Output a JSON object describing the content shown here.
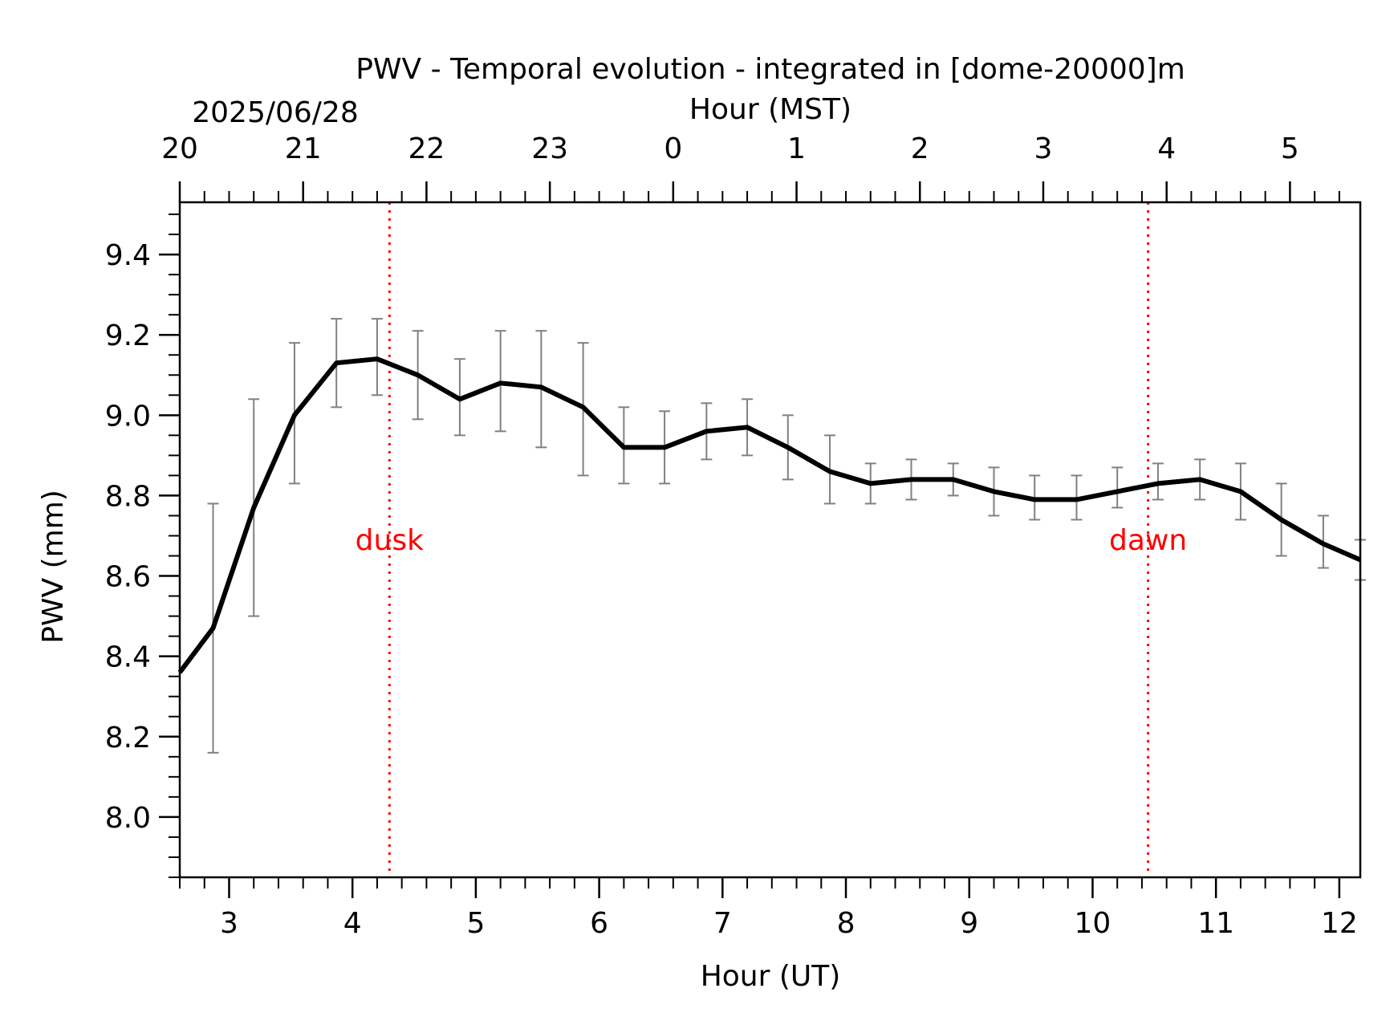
{
  "chart_data": {
    "type": "line",
    "title": "PWV - Temporal evolution - integrated in [dome-20000]m",
    "date_label": "2025/06/28",
    "xlabel": "Hour (UT)",
    "x2label": "Hour (MST)",
    "ylabel": "PWV (mm)",
    "xlim": [
      2.6,
      12.17
    ],
    "ylim": [
      7.85,
      9.53
    ],
    "x_ticks": [
      3,
      4,
      5,
      6,
      7,
      8,
      9,
      10,
      11,
      12
    ],
    "x_tick_labels": [
      "3",
      "4",
      "5",
      "6",
      "7",
      "8",
      "9",
      "10",
      "11",
      "12"
    ],
    "x2_ticks": [
      2.6,
      3.6,
      4.6,
      5.6,
      6.6,
      7.6,
      8.6,
      9.6,
      10.6,
      11.6
    ],
    "x2_tick_labels": [
      "20",
      "21",
      "22",
      "23",
      "0",
      "1",
      "2",
      "3",
      "4",
      "5"
    ],
    "y_ticks": [
      8.0,
      8.2,
      8.4,
      8.6,
      8.8,
      9.0,
      9.2,
      9.4
    ],
    "y_tick_labels": [
      "8.0",
      "8.2",
      "8.4",
      "8.6",
      "8.8",
      "9.0",
      "9.2",
      "9.4"
    ],
    "series": [
      {
        "name": "PWV",
        "color": "#000000",
        "errorbar_color": "#808080",
        "x": [
          2.6,
          2.87,
          3.2,
          3.53,
          3.87,
          4.2,
          4.53,
          4.87,
          5.2,
          5.53,
          5.87,
          6.2,
          6.53,
          6.87,
          7.2,
          7.53,
          7.87,
          8.2,
          8.53,
          8.87,
          9.2,
          9.53,
          9.87,
          10.2,
          10.53,
          10.87,
          11.2,
          11.53,
          11.87,
          12.17
        ],
        "y": [
          8.36,
          8.47,
          8.77,
          9.0,
          9.13,
          9.14,
          9.1,
          9.04,
          9.08,
          9.07,
          9.02,
          8.92,
          8.92,
          8.96,
          8.97,
          8.92,
          8.86,
          8.83,
          8.84,
          8.84,
          8.81,
          8.79,
          8.79,
          8.81,
          8.83,
          8.84,
          8.81,
          8.74,
          8.68,
          8.64
        ],
        "err_low": [
          null,
          8.16,
          8.5,
          8.83,
          9.02,
          9.05,
          8.99,
          8.95,
          8.96,
          8.92,
          8.85,
          8.83,
          8.83,
          8.89,
          8.9,
          8.84,
          8.78,
          8.78,
          8.79,
          8.8,
          8.75,
          8.74,
          8.74,
          8.77,
          8.79,
          8.79,
          8.74,
          8.65,
          8.62,
          8.59
        ],
        "err_high": [
          null,
          8.78,
          9.04,
          9.18,
          9.24,
          9.24,
          9.21,
          9.14,
          9.21,
          9.21,
          9.18,
          9.02,
          9.01,
          9.03,
          9.04,
          9.0,
          8.95,
          8.88,
          8.89,
          8.88,
          8.87,
          8.85,
          8.85,
          8.87,
          8.88,
          8.89,
          8.88,
          8.83,
          8.75,
          8.69
        ]
      }
    ],
    "annotations": [
      {
        "label": "dusk",
        "x": 4.3,
        "color": "#ff0000"
      },
      {
        "label": "dawn",
        "x": 10.45,
        "color": "#ff0000"
      }
    ]
  }
}
